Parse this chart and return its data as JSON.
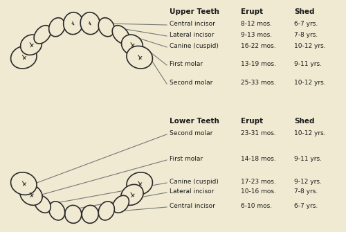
{
  "bg_color": "#f0ead2",
  "tooth_color": "#f0ead2",
  "tooth_edge_color": "#2a2a2a",
  "line_color": "#777777",
  "text_color": "#1a1a1a",
  "upper_header": [
    "Upper Teeth",
    "Erupt",
    "Shed"
  ],
  "lower_header": [
    "Lower Teeth",
    "Erupt",
    "Shed"
  ],
  "upper_teeth": [
    {
      "name": "Central incisor",
      "erupt": "8-12 mos.",
      "shed": "6-7 yrs."
    },
    {
      "name": "Lateral incisor",
      "erupt": "9-13 mos.",
      "shed": "7-8 yrs."
    },
    {
      "name": "Canine (cuspid)",
      "erupt": "16-22 mos.",
      "shed": "10-12 yrs."
    },
    {
      "name": "First molar",
      "erupt": "13-19 mos.",
      "shed": "9-11 yrs."
    },
    {
      "name": "Second molar",
      "erupt": "25-33 mos.",
      "shed": "10-12 yrs."
    }
  ],
  "lower_teeth": [
    {
      "name": "Second molar",
      "erupt": "23-31 mos.",
      "shed": "10-12 yrs."
    },
    {
      "name": "First molar",
      "erupt": "14-18 mos.",
      "shed": "9-11 yrs."
    },
    {
      "name": "Canine (cuspid)",
      "erupt": "17-23 mos.",
      "shed": "9-12 yrs."
    },
    {
      "name": "Lateral incisor",
      "erupt": "10-16 mos.",
      "shed": "7-8 yrs."
    },
    {
      "name": "Central incisor",
      "erupt": "6-10 mos.",
      "shed": "6-7 yrs."
    }
  ]
}
